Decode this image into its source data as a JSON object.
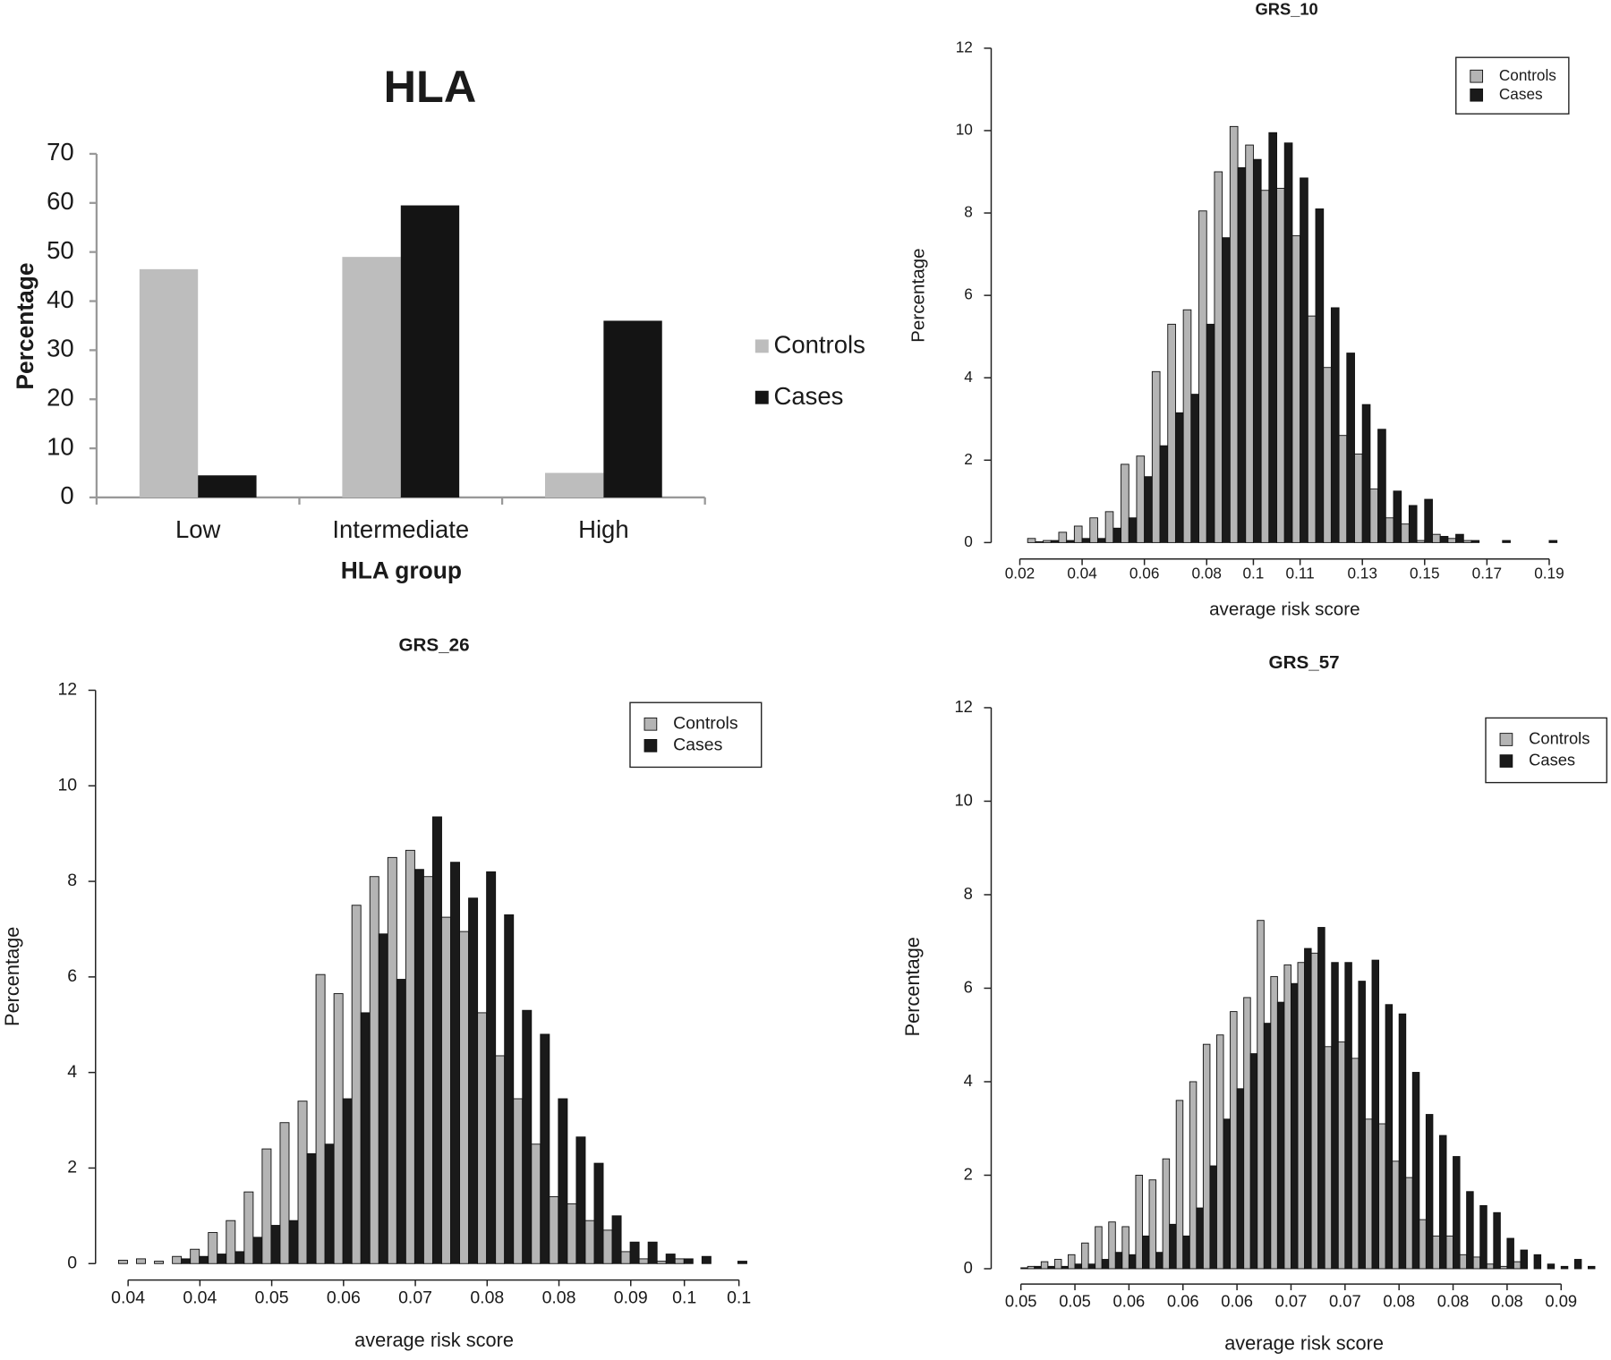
{
  "chart_data": [
    {
      "type": "bar",
      "title": "HLA",
      "x_label": "HLA group",
      "y_label": "Percentage",
      "categories": [
        "Low",
        "Intermediate",
        "High"
      ],
      "series": [
        {
          "name": "Controls",
          "color": "#bdbdbd",
          "values": [
            46.5,
            49,
            5
          ]
        },
        {
          "name": "Cases",
          "color": "#141414",
          "values": [
            4.5,
            59.5,
            36
          ]
        }
      ],
      "ylim": [
        0,
        70
      ],
      "yticks": [
        0,
        10,
        20,
        30,
        40,
        50,
        60,
        70
      ],
      "legend": "right"
    },
    {
      "type": "histogram",
      "title": "GRS_10",
      "x_label": "average risk score",
      "y_label": "Percentage",
      "bins": [
        0.0225,
        0.0275,
        0.0325,
        0.0375,
        0.0425,
        0.0475,
        0.0525,
        0.0575,
        0.0625,
        0.0675,
        0.0725,
        0.0775,
        0.0825,
        0.0875,
        0.0925,
        0.0975,
        0.1025,
        0.1075,
        0.1125,
        0.1175,
        0.1225,
        0.1275,
        0.1325,
        0.1375,
        0.1425,
        0.1475,
        0.1525,
        0.1575,
        0.1625,
        0.1675,
        0.1725,
        0.1775,
        0.1825,
        0.1875,
        0.1925
      ],
      "series": [
        {
          "name": "Controls",
          "color": "#b4b4b4",
          "values": [
            0.1,
            0.05,
            0.25,
            0.4,
            0.6,
            0.75,
            1.9,
            2.1,
            4.15,
            5.3,
            5.65,
            8.05,
            9.0,
            10.1,
            9.65,
            8.55,
            8.6,
            7.45,
            5.5,
            4.25,
            2.6,
            2.15,
            1.3,
            0.6,
            0.45,
            0.05,
            0.2,
            0.1,
            0.05,
            0,
            0,
            0,
            0,
            0
          ]
        },
        {
          "name": "Cases",
          "color": "#1a1a1a",
          "values": [
            0.02,
            0.05,
            0.05,
            0.1,
            0.1,
            0.35,
            0.6,
            1.6,
            2.35,
            3.15,
            3.6,
            5.3,
            7.4,
            9.1,
            9.3,
            9.95,
            9.7,
            8.85,
            8.1,
            5.7,
            4.6,
            3.35,
            2.75,
            1.25,
            0.9,
            1.05,
            0.15,
            0.2,
            0.05,
            0,
            0.05,
            0,
            0,
            0.05
          ]
        }
      ],
      "xlim": [
        0.0108,
        0.1986
      ],
      "xticks": [
        0.02,
        0.04,
        0.06,
        0.08,
        {
          "value": 0.095,
          "label": "0.1"
        },
        0.11,
        0.13,
        0.15,
        0.17,
        0.19
      ],
      "ylim": [
        0,
        12
      ],
      "yticks": [
        0,
        2,
        4,
        6,
        8,
        10,
        12
      ],
      "legend": "upper right"
    },
    {
      "type": "histogram",
      "title": "GRS_26",
      "x_label": "average risk score",
      "y_label": "Percentage",
      "bins": [
        0.0365,
        0.038375,
        0.04025,
        0.042125,
        0.044,
        0.045875,
        0.04775,
        0.049625,
        0.0515,
        0.053375,
        0.05525,
        0.057125,
        0.059,
        0.060875,
        0.06275,
        0.064625,
        0.0665,
        0.068375,
        0.07025,
        0.072125,
        0.074,
        0.075875,
        0.07775,
        0.079625,
        0.0815,
        0.083375,
        0.08525,
        0.087125,
        0.089,
        0.090875,
        0.09275,
        0.094625,
        0.0965,
        0.098375,
        0.10025,
        0.102125
      ],
      "series": [
        {
          "name": "Controls",
          "color": "#b4b4b4",
          "values": [
            0.07,
            0.1,
            0.05,
            0.15,
            0.3,
            0.65,
            0.9,
            1.5,
            2.4,
            2.95,
            3.4,
            6.05,
            5.65,
            7.5,
            8.1,
            8.5,
            8.65,
            8.1,
            7.25,
            6.95,
            5.25,
            4.35,
            3.45,
            2.5,
            1.4,
            1.25,
            0.9,
            0.7,
            0.25,
            0.1,
            0.05,
            0.1,
            0,
            0,
            0
          ]
        },
        {
          "name": "Cases",
          "color": "#1a1a1a",
          "values": [
            0,
            0,
            0,
            0.1,
            0.15,
            0.2,
            0.25,
            0.55,
            0.8,
            0.9,
            2.3,
            2.5,
            3.45,
            5.25,
            6.9,
            5.95,
            8.25,
            9.35,
            8.4,
            7.65,
            8.2,
            7.3,
            5.3,
            4.8,
            3.45,
            2.65,
            2.1,
            1.0,
            0.45,
            0.45,
            0.2,
            0.1,
            0.15,
            0,
            0.05
          ]
        }
      ],
      "xlim": [
        0.0341,
        0.103
      ],
      "xticks": [
        {
          "value": 0.0375,
          "label": "0.04"
        },
        {
          "value": 0.045,
          "label": "0.04"
        },
        {
          "value": 0.0525,
          "label": "0.05"
        },
        0.06,
        {
          "value": 0.0675,
          "label": "0.07"
        },
        {
          "value": 0.075,
          "label": "0.08"
        },
        {
          "value": 0.0825,
          "label": "0.08"
        },
        0.09,
        {
          "value": 0.0956,
          "label": "0.1"
        },
        {
          "value": 0.1013,
          "label": "0.1"
        }
      ],
      "ylim": [
        0,
        12
      ],
      "yticks": [
        0,
        2,
        4,
        6,
        8,
        10,
        12
      ],
      "legend": "upper right"
    },
    {
      "type": "histogram",
      "title": "GRS_57",
      "x_label": "average risk score",
      "y_label": "Percentage",
      "bins": [
        0.047,
        0.048,
        0.049,
        0.05,
        0.051,
        0.052,
        0.053,
        0.054,
        0.055,
        0.056,
        0.057,
        0.058,
        0.059,
        0.06,
        0.061,
        0.062,
        0.063,
        0.064,
        0.065,
        0.066,
        0.067,
        0.068,
        0.069,
        0.07,
        0.071,
        0.072,
        0.073,
        0.074,
        0.075,
        0.076,
        0.077,
        0.078,
        0.079,
        0.08,
        0.081,
        0.082,
        0.083,
        0.084,
        0.085,
        0.086,
        0.087,
        0.088,
        0.089,
        0.09
      ],
      "series": [
        {
          "name": "Controls",
          "color": "#b4b4b4",
          "values": [
            0,
            0.05,
            0.15,
            0.2,
            0.3,
            0.55,
            0.9,
            1.0,
            0.9,
            2.0,
            1.9,
            2.35,
            3.6,
            4.0,
            4.8,
            5.0,
            5.5,
            5.8,
            7.45,
            6.25,
            6.5,
            6.55,
            6.75,
            4.75,
            4.85,
            4.5,
            3.2,
            3.1,
            2.3,
            1.95,
            1.05,
            0.7,
            0.7,
            0.3,
            0.25,
            0.1,
            0.05,
            0.15,
            0,
            0,
            0,
            0,
            0
          ]
        },
        {
          "name": "Cases",
          "color": "#1a1a1a",
          "values": [
            0.02,
            0.05,
            0.05,
            0.05,
            0.1,
            0.1,
            0.2,
            0.35,
            0.3,
            0.7,
            0.35,
            0.95,
            0.7,
            1.3,
            2.2,
            3.2,
            3.85,
            4.6,
            5.25,
            5.7,
            6.1,
            6.85,
            7.3,
            6.55,
            6.55,
            6.15,
            6.6,
            5.65,
            5.45,
            4.2,
            3.3,
            2.85,
            2.4,
            1.65,
            1.35,
            1.2,
            0.65,
            0.4,
            0.3,
            0.1,
            0.05,
            0.2,
            0.05
          ]
        }
      ],
      "xlim": [
        0.0453,
        0.0905
      ],
      "xticks": [
        {
          "value": 0.0475,
          "label": "0.05"
        },
        {
          "value": 0.0515,
          "label": "0.05"
        },
        {
          "value": 0.0555,
          "label": "0.06"
        },
        {
          "value": 0.0595,
          "label": "0.06"
        },
        {
          "value": 0.0635,
          "label": "0.06"
        },
        {
          "value": 0.0675,
          "label": "0.07"
        },
        {
          "value": 0.0715,
          "label": "0.07"
        },
        {
          "value": 0.0755,
          "label": "0.08"
        },
        {
          "value": 0.0795,
          "label": "0.08"
        },
        {
          "value": 0.0835,
          "label": "0.08"
        },
        {
          "value": 0.0875,
          "label": "0.09"
        }
      ],
      "ylim": [
        0,
        12
      ],
      "yticks": [
        0,
        2,
        4,
        6,
        8,
        10,
        12
      ],
      "legend": "upper right"
    }
  ]
}
